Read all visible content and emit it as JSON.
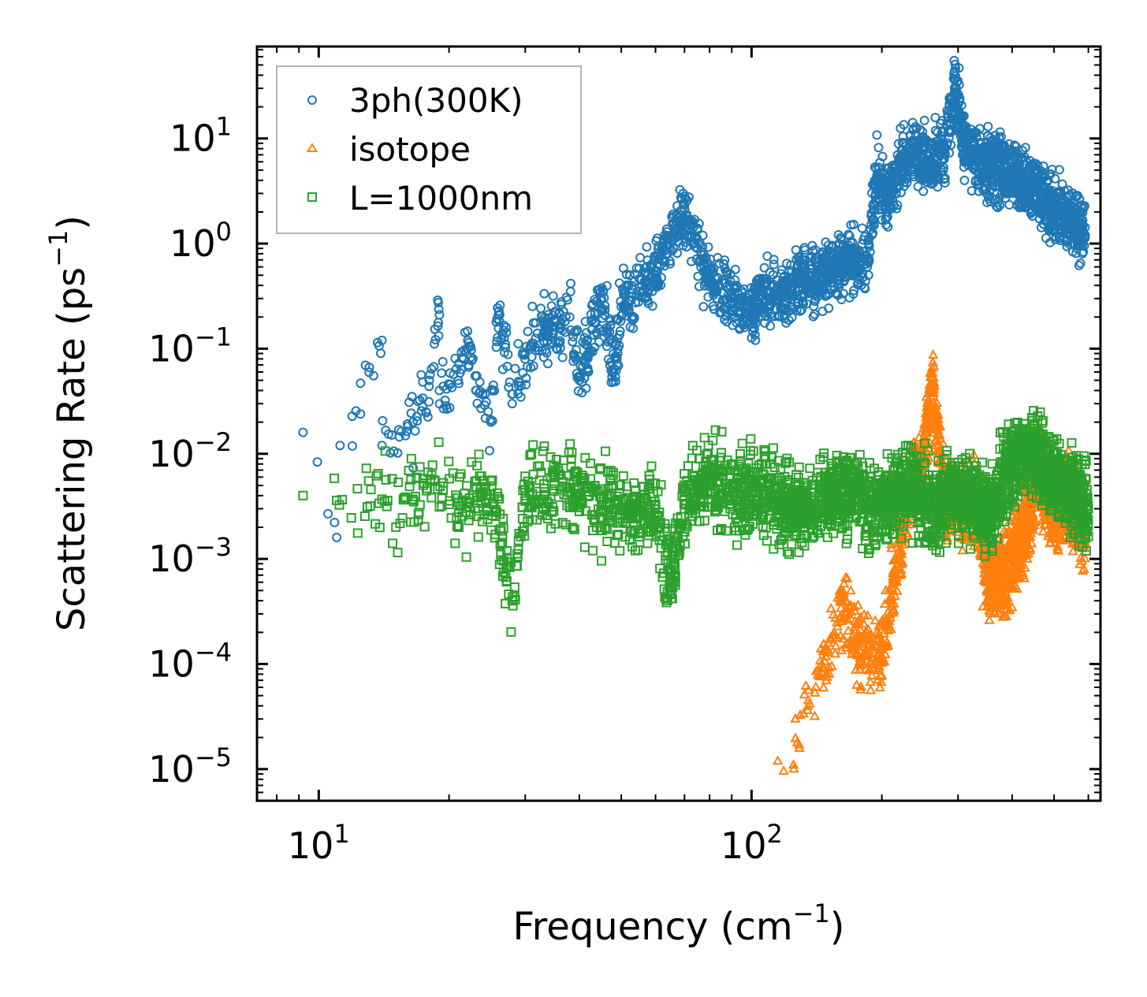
{
  "chart_data": {
    "type": "scatter",
    "xscale": "log",
    "yscale": "log",
    "xlim": [
      7.2,
      640
    ],
    "ylim": [
      5e-06,
      75
    ],
    "xlabel": "Frequency (cm⁻¹)",
    "xlabel_base": "Frequency (cm",
    "xlabel_exp": "−1",
    "xlabel_close": ")",
    "ylabel": "Scattering Rate (ps⁻¹)",
    "ylabel_base": "Scattering Rate (ps",
    "ylabel_exp": "−1",
    "ylabel_close": ")",
    "x_ticks": [
      {
        "value": 10,
        "base": "10",
        "exp": "1"
      },
      {
        "value": 100,
        "base": "10",
        "exp": "2"
      }
    ],
    "y_ticks": [
      {
        "value": 10,
        "base": "10",
        "exp": "1"
      },
      {
        "value": 1,
        "base": "10",
        "exp": "0"
      },
      {
        "value": 0.1,
        "base": "10",
        "exp": "−1"
      },
      {
        "value": 0.01,
        "base": "10",
        "exp": "−2"
      },
      {
        "value": 0.001,
        "base": "10",
        "exp": "−3"
      },
      {
        "value": 0.0001,
        "base": "10",
        "exp": "−4"
      },
      {
        "value": 1e-05,
        "base": "10",
        "exp": "−5"
      }
    ],
    "legend_position": "upper-left",
    "series": [
      {
        "name": "3ph(300K)",
        "marker": "circle",
        "color": "#1f77b4",
        "anchors": [
          [
            9.2,
            0.016
          ],
          [
            11,
            0.0016
          ],
          [
            11.2,
            0.012
          ],
          [
            14,
            0.12
          ],
          [
            14,
            0.012
          ],
          [
            16.5,
            0.02
          ],
          [
            18,
            0.05
          ],
          [
            19,
            0.21
          ],
          [
            19,
            0.04
          ],
          [
            21,
            0.05
          ],
          [
            22,
            0.1
          ],
          [
            23,
            0.055
          ],
          [
            25,
            0.02
          ],
          [
            26,
            0.21
          ],
          [
            27,
            0.11
          ],
          [
            28,
            0.03
          ],
          [
            30,
            0.09
          ],
          [
            32,
            0.14
          ],
          [
            35,
            0.15
          ],
          [
            38,
            0.2
          ],
          [
            40,
            0.05
          ],
          [
            42,
            0.09
          ],
          [
            45,
            0.3
          ],
          [
            48,
            0.06
          ],
          [
            50,
            0.25
          ],
          [
            55,
            0.35
          ],
          [
            60,
            0.5
          ],
          [
            62,
            0.9
          ],
          [
            68,
            1.6
          ],
          [
            71,
            1.8
          ],
          [
            75,
            0.9
          ],
          [
            82,
            0.4
          ],
          [
            90,
            0.3
          ],
          [
            100,
            0.2
          ],
          [
            105,
            0.35
          ],
          [
            115,
            0.3
          ],
          [
            130,
            0.45
          ],
          [
            150,
            0.5
          ],
          [
            170,
            0.7
          ],
          [
            185,
            0.6
          ],
          [
            195,
            4.5
          ],
          [
            205,
            2.5
          ],
          [
            220,
            5.5
          ],
          [
            240,
            7.5
          ],
          [
            260,
            6
          ],
          [
            280,
            8
          ],
          [
            295,
            30
          ],
          [
            310,
            9
          ],
          [
            330,
            6.5
          ],
          [
            360,
            5.5
          ],
          [
            400,
            4.5
          ],
          [
            440,
            3.5
          ],
          [
            500,
            2.2
          ],
          [
            550,
            1.6
          ],
          [
            590,
            1.2
          ]
        ],
        "point_count": 2600
      },
      {
        "name": "isotope",
        "marker": "triangle",
        "color": "#ff7f0e",
        "anchors": [
          [
            115,
            1.2e-05
          ],
          [
            125,
            1.1e-05
          ],
          [
            135,
            4e-05
          ],
          [
            145,
            0.0001
          ],
          [
            155,
            0.0002
          ],
          [
            165,
            0.0004
          ],
          [
            175,
            0.00016
          ],
          [
            185,
            0.00012
          ],
          [
            200,
            0.00012
          ],
          [
            215,
            0.0008
          ],
          [
            230,
            0.004
          ],
          [
            245,
            0.008
          ],
          [
            255,
            0.018
          ],
          [
            262,
            0.045
          ],
          [
            280,
            0.003
          ],
          [
            300,
            0.004
          ],
          [
            330,
            0.003
          ],
          [
            355,
            0.0006
          ],
          [
            390,
            0.0008
          ],
          [
            430,
            0.002
          ],
          [
            460,
            0.008
          ],
          [
            500,
            0.003
          ],
          [
            540,
            0.004
          ],
          [
            590,
            0.002
          ]
        ],
        "point_count": 2200
      },
      {
        "name": "L=1000nm",
        "marker": "square",
        "color": "#2ca02c",
        "anchors": [
          [
            9.2,
            0.004
          ],
          [
            11,
            0.0036
          ],
          [
            14,
            0.0037
          ],
          [
            16.5,
            0.0037
          ],
          [
            18.5,
            0.0055
          ],
          [
            20,
            0.0033
          ],
          [
            22,
            0.0035
          ],
          [
            25,
            0.0055
          ],
          [
            28,
            0.0004
          ],
          [
            30,
            0.004
          ],
          [
            35,
            0.005
          ],
          [
            40,
            0.004
          ],
          [
            45,
            0.0035
          ],
          [
            50,
            0.003
          ],
          [
            55,
            0.003
          ],
          [
            60,
            0.0033
          ],
          [
            65,
            0.0006
          ],
          [
            70,
            0.003
          ],
          [
            80,
            0.006
          ],
          [
            90,
            0.004
          ],
          [
            100,
            0.0045
          ],
          [
            110,
            0.004
          ],
          [
            130,
            0.003
          ],
          [
            150,
            0.004
          ],
          [
            170,
            0.005
          ],
          [
            190,
            0.003
          ],
          [
            210,
            0.004
          ],
          [
            230,
            0.005
          ],
          [
            260,
            0.003
          ],
          [
            290,
            0.004
          ],
          [
            320,
            0.004
          ],
          [
            360,
            0.0025
          ],
          [
            400,
            0.009
          ],
          [
            450,
            0.01
          ],
          [
            500,
            0.006
          ],
          [
            550,
            0.004
          ],
          [
            600,
            0.003
          ]
        ],
        "point_count": 3000
      }
    ]
  }
}
